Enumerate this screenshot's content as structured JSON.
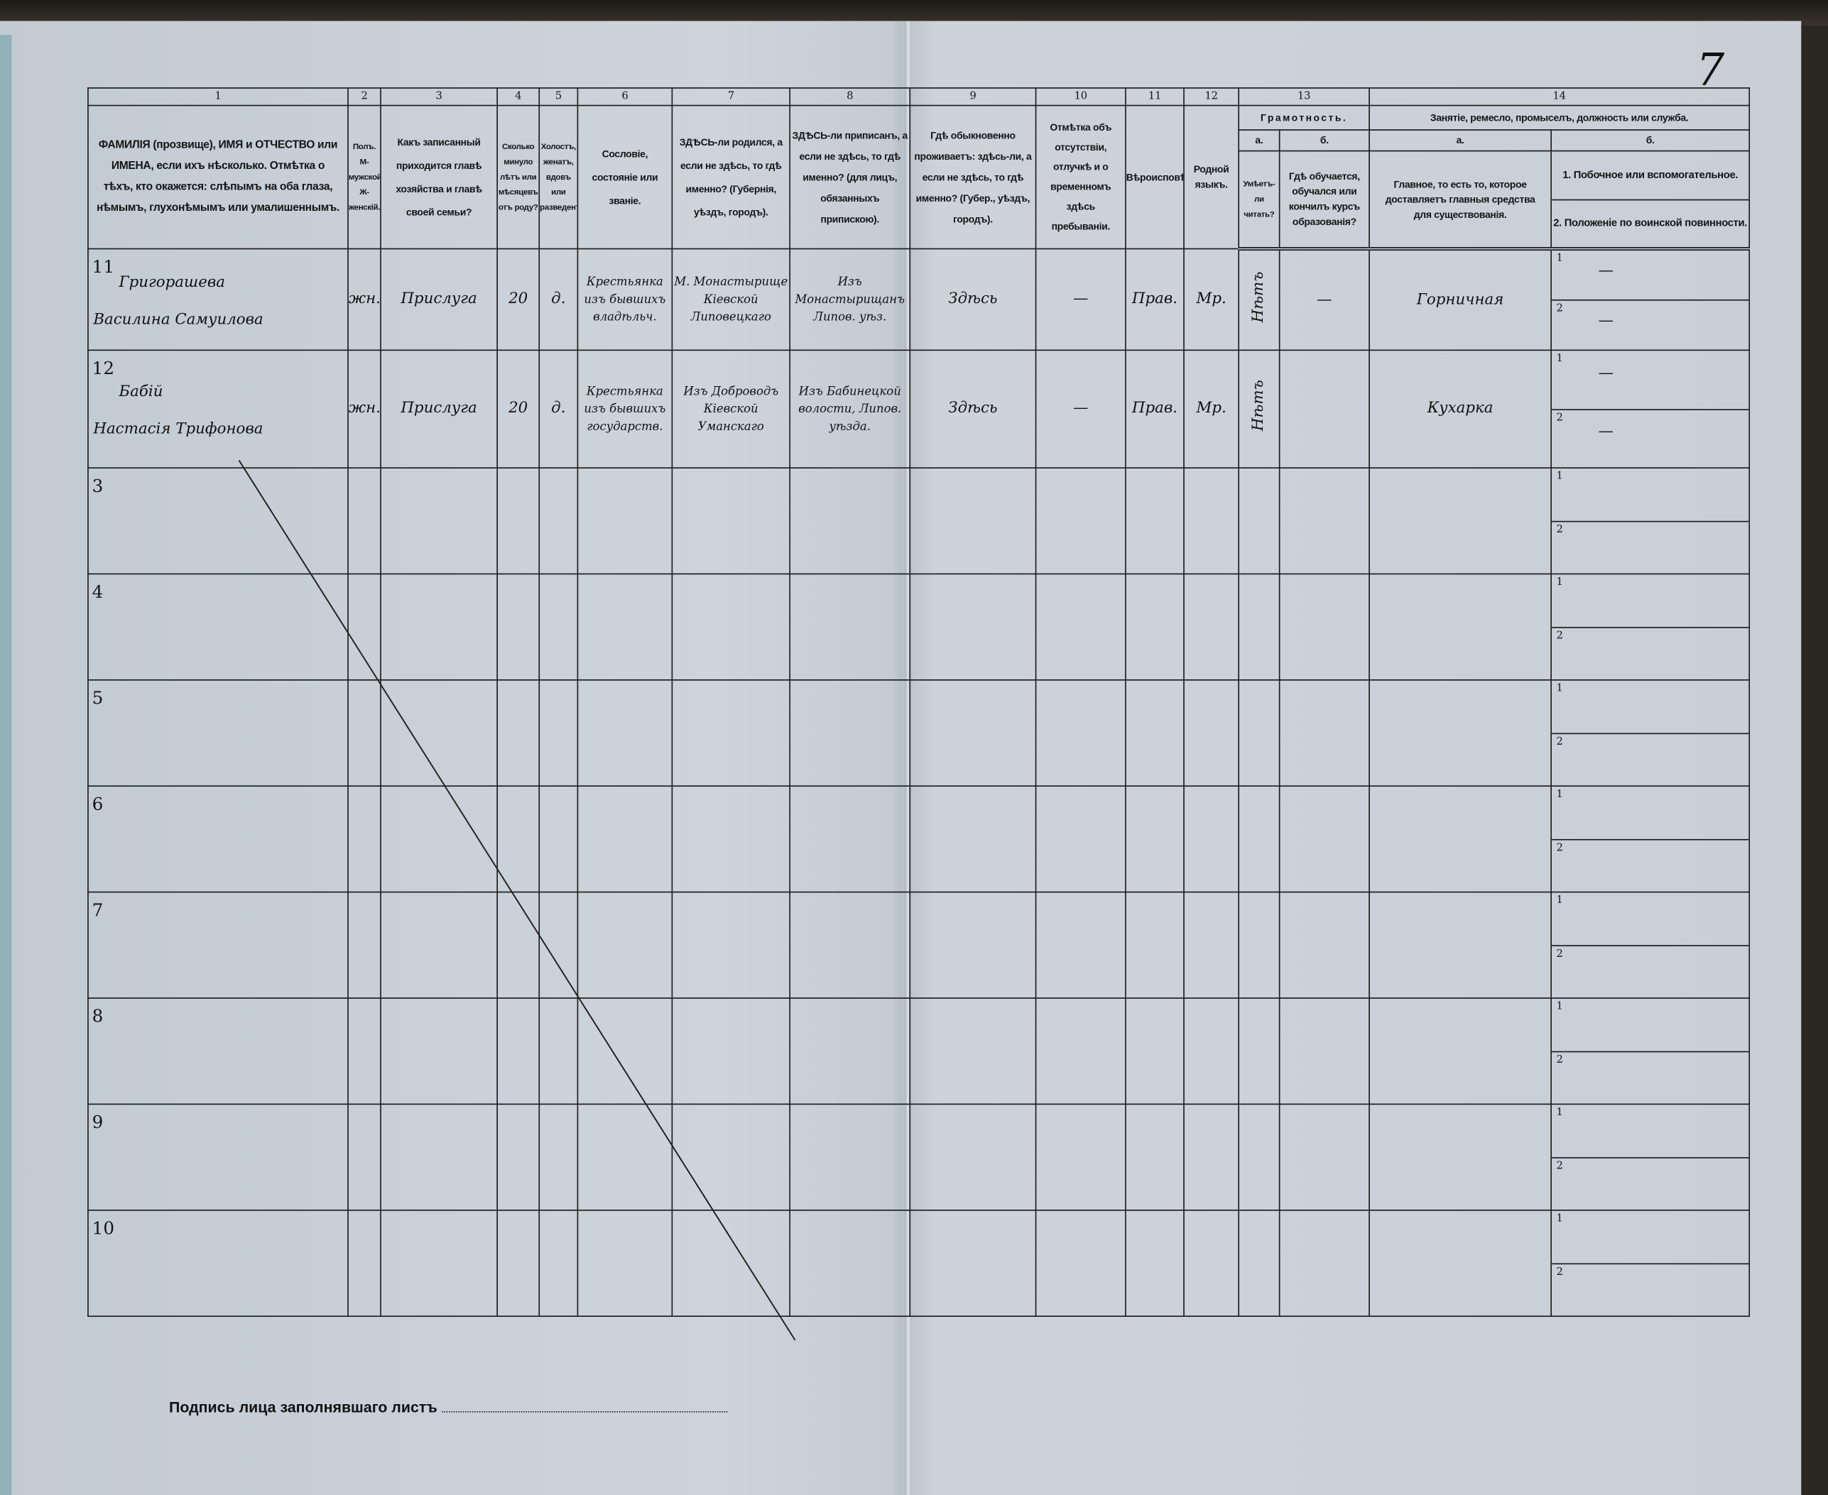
{
  "page_number": "7",
  "form": {
    "column_numbers": [
      "1",
      "2",
      "3",
      "4",
      "5",
      "6",
      "7",
      "8",
      "9",
      "10",
      "11",
      "12",
      "13",
      "14"
    ],
    "headers": {
      "c1": "ФАМИЛІЯ (прозвище), ИМЯ и ОТЧЕСТВО или ИМЕНА, если ихъ нѣсколько. Отмѣтка о тѣхъ, кто окажется: слѣпымъ на оба глаза, нѣмымъ, глухонѣмымъ или умалишеннымъ.",
      "c2": "Полъ. М-мужской. Ж-женскій.",
      "c3": "Какъ записанный приходится главѣ хозяйства и главѣ своей семьи?",
      "c4": "Сколько минуло лѣтъ или мѣсяцевъ отъ роду?",
      "c5": "Холостъ, женатъ, вдовъ или разведенъ.",
      "c6": "Сословіе, состояніе или званіе.",
      "c7": "ЗДѢСЬ-ли родился, а если не здѣсь, то гдѣ именно? (Губернія, уѣздъ, городъ).",
      "c8": "ЗДѢСЬ-ли приписанъ, а если не здѣсь, то гдѣ именно? (для лицъ, обязанныхъ припискою).",
      "c9": "Гдѣ обыкновенно проживаетъ: здѣсь-ли, а если не здѣсь, то гдѣ именно? (Губер., уѣздъ, городъ).",
      "c10": "Отмѣтка объ отсутствіи, отлучкѣ и о временномъ здѣсь пребываніи.",
      "c11": "Вѣроисповѣданіе.",
      "c12": "Родной языкъ.",
      "c13": "Грамотность.",
      "c13a_label": "а.",
      "c13a": "Умѣетъ-ли читать?",
      "c13b_label": "б.",
      "c13b": "Гдѣ обучается, обучался или кончилъ курсъ образованія?",
      "c14": "Занятіе, ремесло, промыселъ, должность или служба.",
      "c14a_label": "а.",
      "c14a": "Главное, то есть то, которое доставляетъ главныя средства для существованія.",
      "c14b_label": "б.",
      "c14b_1": "1. Побочное или вспомогательное.",
      "c14b_2": "2. Положеніе по воинской повинности."
    },
    "rows": [
      {
        "no": "11",
        "surname": "Григорашева",
        "name": "Василина Самуилова",
        "sex": "жн.",
        "relation": "Прислуга",
        "age": "20",
        "marital": "д.",
        "estate": "Крестьянка изъ бывшихъ владѣльч.",
        "birthplace": "М. Монастырище Кіевской Липовецкаго",
        "registered": "Изъ Монастырищанъ Липов. уѣз.",
        "residence": "Здѣсь",
        "absence": "—",
        "religion": "Прав.",
        "language": "Мр.",
        "literate": "Нѣтъ",
        "education": "—",
        "occupation": "Горничная",
        "sub1_label": "1",
        "sub1": "—",
        "sub2_label": "2",
        "sub2": "—"
      },
      {
        "no": "12",
        "surname": "Бабій",
        "name": "Настасія Трифонова",
        "sex": "жн.",
        "relation": "Прислуга",
        "age": "20",
        "marital": "д.",
        "estate": "Крестьянка изъ бывшихъ государств.",
        "birthplace": "Изъ Доброводъ Кіевской Уманскаго",
        "registered": "Изъ Бабинецкой волости, Липов. уѣзда.",
        "residence": "Здѣсь",
        "absence": "—",
        "religion": "Прав.",
        "language": "Мр.",
        "literate": "Нѣтъ",
        "education": "",
        "occupation": "Кухарка",
        "sub1_label": "1",
        "sub1": "—",
        "sub2_label": "2",
        "sub2": "—"
      },
      {
        "no": "3"
      },
      {
        "no": "4"
      },
      {
        "no": "5"
      },
      {
        "no": "6"
      },
      {
        "no": "7"
      },
      {
        "no": "8"
      },
      {
        "no": "9"
      },
      {
        "no": "10"
      }
    ],
    "sub_labels": [
      "1",
      "2"
    ]
  },
  "footer": {
    "signature_label": "Подпись лица заполнявшаго листъ"
  }
}
